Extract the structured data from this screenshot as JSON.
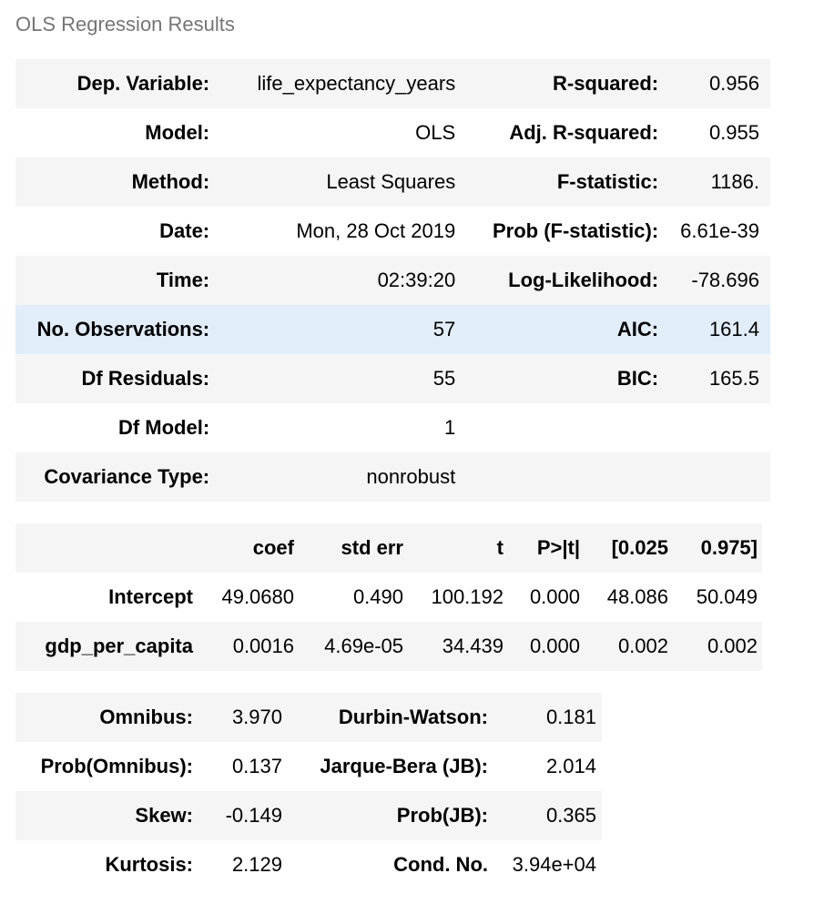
{
  "title": "OLS Regression Results",
  "summary": {
    "rows": [
      {
        "l1": "Dep. Variable:",
        "v1": "life_expectancy_years",
        "l2": "R-squared:",
        "v2": "0.956"
      },
      {
        "l1": "Model:",
        "v1": "OLS",
        "l2": "Adj. R-squared:",
        "v2": "0.955"
      },
      {
        "l1": "Method:",
        "v1": "Least Squares",
        "l2": "F-statistic:",
        "v2": "1186."
      },
      {
        "l1": "Date:",
        "v1": "Mon, 28 Oct 2019",
        "l2": "Prob (F-statistic):",
        "v2": "6.61e-39"
      },
      {
        "l1": "Time:",
        "v1": "02:39:20",
        "l2": "Log-Likelihood:",
        "v2": "-78.696"
      },
      {
        "l1": "No. Observations:",
        "v1": "57",
        "l2": "AIC:",
        "v2": "161.4"
      },
      {
        "l1": "Df Residuals:",
        "v1": "55",
        "l2": "BIC:",
        "v2": "165.5"
      },
      {
        "l1": "Df Model:",
        "v1": "1",
        "l2": "",
        "v2": ""
      },
      {
        "l1": "Covariance Type:",
        "v1": "nonrobust",
        "l2": "",
        "v2": ""
      }
    ]
  },
  "coefficients": {
    "headers": [
      "",
      "coef",
      "std err",
      "t",
      "P>|t|",
      "[0.025",
      "0.975]"
    ],
    "rows": [
      {
        "name": "Intercept",
        "values": [
          "49.0680",
          "0.490",
          "100.192",
          "0.000",
          "48.086",
          "50.049"
        ]
      },
      {
        "name": "gdp_per_capita",
        "values": [
          "0.0016",
          "4.69e-05",
          "34.439",
          "0.000",
          "0.002",
          "0.002"
        ]
      }
    ]
  },
  "diagnostics": {
    "rows": [
      {
        "l1": "Omnibus:",
        "v1": "3.970",
        "l2": "Durbin-Watson:",
        "v2": "0.181"
      },
      {
        "l1": "Prob(Omnibus):",
        "v1": "0.137",
        "l2": "Jarque-Bera (JB):",
        "v2": "2.014"
      },
      {
        "l1": "Skew:",
        "v1": "-0.149",
        "l2": "Prob(JB):",
        "v2": "0.365"
      },
      {
        "l1": "Kurtosis:",
        "v1": "2.129",
        "l2": "Cond. No.",
        "v2": "3.94e+04"
      }
    ]
  },
  "colors": {
    "caption": "#757575",
    "row_alt": "#f5f5f5",
    "row_highlight": "#e1edf8"
  }
}
